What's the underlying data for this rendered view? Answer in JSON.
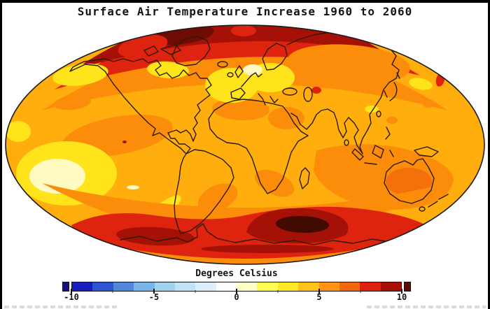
{
  "title": "Surface Air Temperature Increase 1960 to 2060",
  "figure_type": "global temperature anomaly map on an oval (Mollweide-style) projection",
  "colorbar": {
    "label": "Degrees Celsius",
    "min": -10,
    "max": 10,
    "ticks": [
      {
        "value": -10,
        "label": "-10"
      },
      {
        "value": -5,
        "label": "-5"
      },
      {
        "value": 0,
        "label": "0"
      },
      {
        "value": 5,
        "label": "5"
      },
      {
        "value": 10,
        "label": "10"
      }
    ],
    "minor_ticks": [
      -7.5,
      -2.5,
      2.5,
      7.5
    ],
    "segments": [
      "#191dc0",
      "#2e55cf",
      "#5288da",
      "#7ab5e8",
      "#a3d2ef",
      "#c2e3f4",
      "#ddeffa",
      "#fdfdff",
      "#ffffc8",
      "#ffff52",
      "#ffe926",
      "#ffc21c",
      "#ff9414",
      "#f4680c",
      "#df2110",
      "#a81007"
    ],
    "left_cap": "#121280",
    "right_cap": "#5e0d04"
  },
  "colors": {
    "base": "#ffae0e",
    "yellow": "#ffe41c",
    "pale_yellow": "#fff9c2",
    "orange": "#fb8d0b",
    "deep_orange": "#f4700a",
    "red": "#de230f",
    "dark_red": "#a51107",
    "maroon": "#6e0b03",
    "near_black": "#420b02",
    "coastline": "#2b1b07",
    "map_outline": "#1a1a1a"
  },
  "map": {
    "units": "degrees Celsius",
    "regions": [
      {
        "name": "Arctic rim",
        "anomaly": "+8 to +10"
      },
      {
        "name": "Northern Greenland / Canadian Arctic",
        "anomaly": "about +10 (dark red)"
      },
      {
        "name": "Antarctic coastal band",
        "anomaly": "+7 to +10"
      },
      {
        "name": "East Antarctic interior hotspot",
        "anomaly": "+10 or more (near-black)"
      },
      {
        "name": "Tropical and mid-latitude oceans",
        "anomaly": "+3 to +5"
      },
      {
        "name": "Sahara, Central Africa, Amazon, Southern Africa, Australian interior",
        "anomaly": "+5 to +6"
      },
      {
        "name": "North Atlantic and Europe",
        "anomaly": "+1 to +3"
      },
      {
        "name": "Southeast Pacific pale patch",
        "anomaly": "0 to +1"
      }
    ]
  }
}
